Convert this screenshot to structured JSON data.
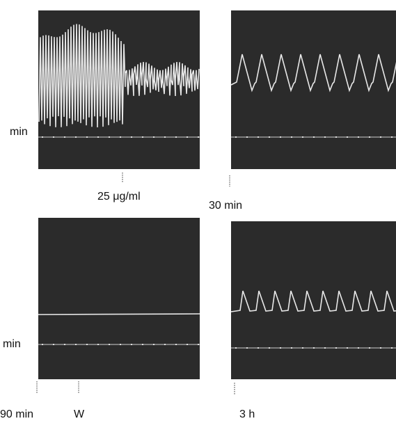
{
  "rows": [
    {
      "axis_label": "min",
      "annotations": [
        "25 μg/ml",
        "30 min"
      ]
    },
    {
      "axis_label": "min",
      "annotations": [
        "90 min",
        "W",
        "3 h"
      ]
    }
  ]
}
